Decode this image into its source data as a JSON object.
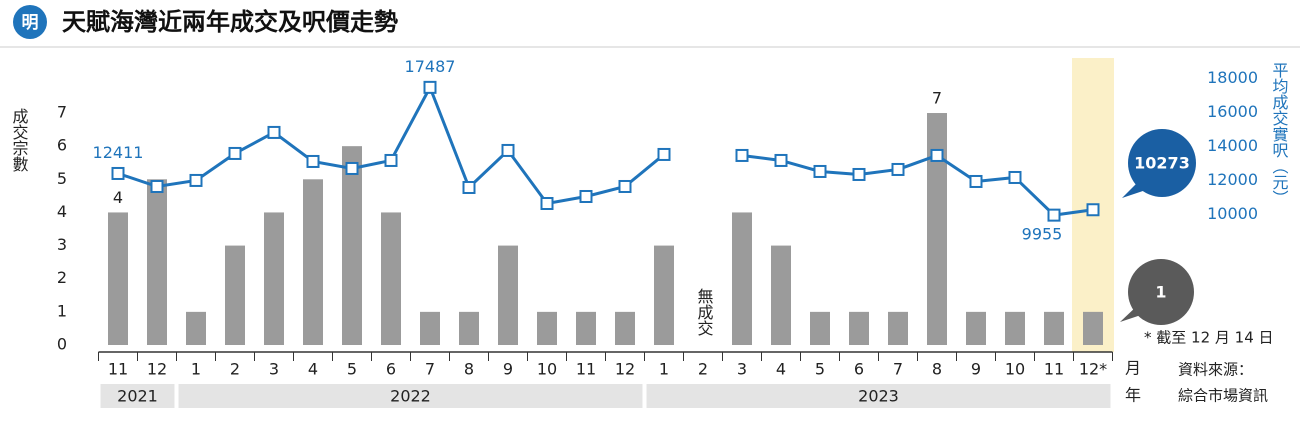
{
  "logo": "明",
  "chart_data": {
    "type": "combo",
    "title": "天賦海灣近兩年成交及呎價走勢",
    "categories": [
      "11",
      "12",
      "1",
      "2",
      "3",
      "4",
      "5",
      "6",
      "7",
      "8",
      "9",
      "10",
      "11",
      "12",
      "1",
      "2",
      "3",
      "4",
      "5",
      "6",
      "7",
      "8",
      "9",
      "10",
      "11",
      "12*"
    ],
    "years": [
      "2021",
      "2022",
      "2023"
    ],
    "x_label": "月",
    "year_label": "年",
    "y_label": "成交宗數",
    "y2_label": "平均成交實呎（元）",
    "ylim": [
      0,
      8.6
    ],
    "yticks": [
      0,
      1,
      2,
      3,
      4,
      5,
      6,
      7
    ],
    "y2lim": [
      2300,
      19100
    ],
    "y2ticks": [
      10000,
      12000,
      14000,
      16000,
      18000
    ],
    "series": [
      {
        "type": "bar",
        "color": "#9b9b9b",
        "values": [
          4,
          5,
          1,
          3,
          4,
          5,
          6,
          4,
          1,
          1,
          3,
          1,
          1,
          1,
          3,
          0,
          4,
          3,
          1,
          1,
          1,
          7,
          1,
          1,
          1,
          1
        ]
      },
      {
        "type": "line",
        "axis": "y2",
        "color": "#1f74bb",
        "values": [
          12411,
          11644,
          12000,
          13591,
          14830,
          13119,
          12706,
          13178,
          17487,
          11585,
          13768,
          10641,
          11054,
          11644,
          13532,
          null,
          13473,
          13178,
          12529,
          12352,
          12647,
          13473,
          11939,
          12175,
          9955,
          10273
        ]
      }
    ],
    "annotation": "無成交",
    "footnote": "* 截至 12 月 14 日",
    "source": [
      "資料來源：",
      "綜合市場資訊"
    ]
  }
}
